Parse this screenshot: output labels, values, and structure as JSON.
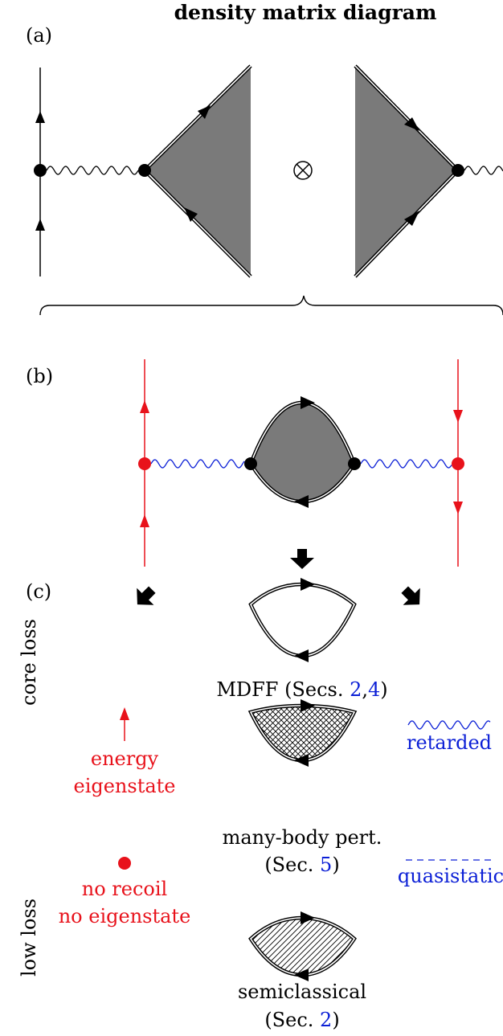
{
  "title": "density matrix diagram",
  "panels": {
    "a": "(a)",
    "b": "(b)",
    "c": "(c)"
  },
  "side_labels": {
    "core_loss": "core loss",
    "low_loss": "low loss"
  },
  "methods": {
    "mdff": {
      "text": "MDFF (Secs. ",
      "ref1": "2",
      "sep": ",",
      "ref2": "4",
      "close": ")"
    },
    "mbpt": {
      "line1": "many-body pert.",
      "open": "(Sec. ",
      "ref": "5",
      "close": ")"
    },
    "semi": {
      "line1": "semiclassical",
      "open": "(Sec. ",
      "ref": "2",
      "close": ")"
    }
  },
  "legend": {
    "energy": {
      "line1": "energy",
      "line2": "eigenstate"
    },
    "norecoil": {
      "line1": "no recoil",
      "line2": "no eigenstate"
    },
    "retarded": "retarded",
    "quasistatic": "quasistatic"
  },
  "colors": {
    "black": "#000000",
    "red": "#e8121b",
    "blue": "#0b1fd6",
    "gray_fill": "#7a7a7a"
  },
  "symbols": {
    "tensor": "otimes-symbol"
  }
}
